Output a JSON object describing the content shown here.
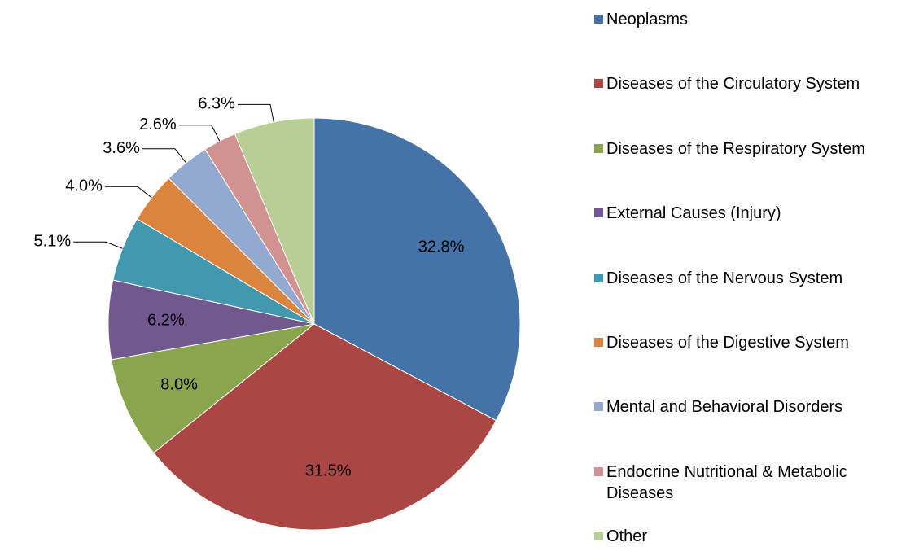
{
  "chart_data": {
    "type": "pie",
    "categories": [
      "Neoplasms",
      "Diseases of the Circulatory System",
      "Diseases of the Respiratory System",
      "External Causes (Injury)",
      "Diseases of the Nervous System",
      "Diseases of the Digestive System",
      "Mental and Behavioral Disorders",
      "Endocrine Nutritional & Metabolic Diseases",
      "Other"
    ],
    "values": [
      32.8,
      31.5,
      8.0,
      6.2,
      5.1,
      4.0,
      3.6,
      2.6,
      6.3
    ],
    "value_labels": [
      "32.8%",
      "31.5%",
      "8.0%",
      "6.2%",
      "5.1%",
      "4.0%",
      "3.6%",
      "2.6%",
      "6.3%"
    ],
    "colors": [
      "#4572a7",
      "#aa4643",
      "#89a54e",
      "#71588f",
      "#4198af",
      "#db843d",
      "#93a9cf",
      "#d19392",
      "#b9cd96"
    ],
    "legend": "right"
  }
}
